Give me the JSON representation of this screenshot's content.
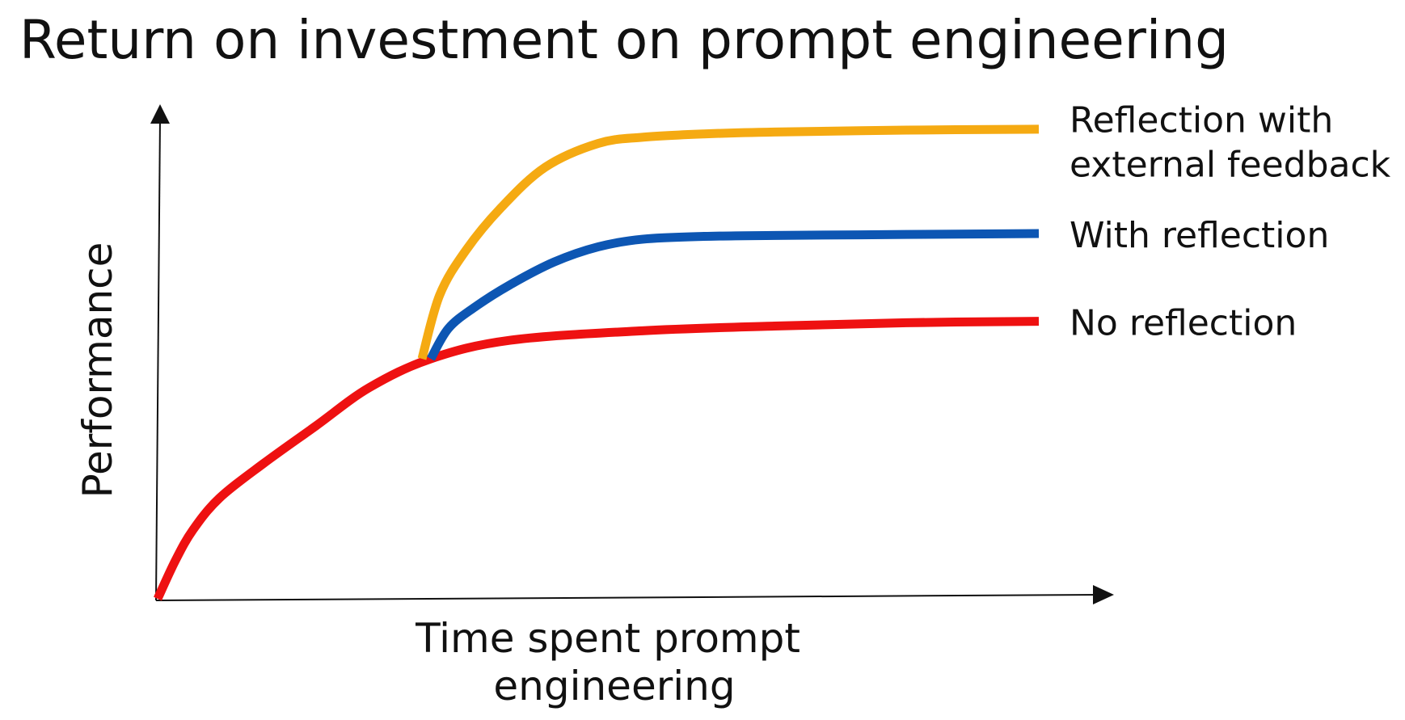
{
  "title": "Return on investment on prompt engineering",
  "chart_data": {
    "type": "line",
    "title": "Return on investment on prompt engineering",
    "xlabel": [
      "Time spent prompt",
      "engineering"
    ],
    "ylabel": "Performance",
    "grid": false,
    "axis_ticks": false,
    "legend": "right",
    "xlim": [
      0,
      10
    ],
    "ylim": [
      0,
      10
    ],
    "series": [
      {
        "name": "No reflection",
        "label_lines": [
          "No reflection"
        ],
        "color": "#ee1111",
        "x": [
          0.0,
          0.2,
          0.4,
          0.7,
          1.2,
          1.8,
          2.4,
          3.1,
          4.0,
          5.5,
          7.0,
          8.5,
          10.0
        ],
        "y": [
          0.0,
          0.8,
          1.45,
          2.12,
          2.85,
          3.65,
          4.45,
          5.06,
          5.45,
          5.65,
          5.75,
          5.82,
          5.85
        ]
      },
      {
        "name": "With reflection",
        "label_lines": [
          "With reflection"
        ],
        "color": "#0d56b3",
        "x": [
          3.1,
          3.3,
          3.6,
          4.0,
          4.5,
          5.0,
          5.5,
          6.2,
          7.0,
          8.5,
          10.0
        ],
        "y": [
          5.06,
          5.7,
          6.15,
          6.62,
          7.1,
          7.42,
          7.58,
          7.64,
          7.66,
          7.68,
          7.7
        ]
      },
      {
        "name": "Reflection with\nexternal feedback",
        "label_lines": [
          "Reflection with",
          "external feedback"
        ],
        "color": "#f5aa12",
        "x": [
          3.0,
          3.2,
          3.5,
          3.9,
          4.4,
          5.0,
          5.5,
          6.2,
          7.0,
          8.5,
          10.0
        ],
        "y": [
          5.06,
          6.4,
          7.35,
          8.25,
          9.1,
          9.6,
          9.73,
          9.8,
          9.84,
          9.88,
          9.9
        ]
      }
    ]
  }
}
